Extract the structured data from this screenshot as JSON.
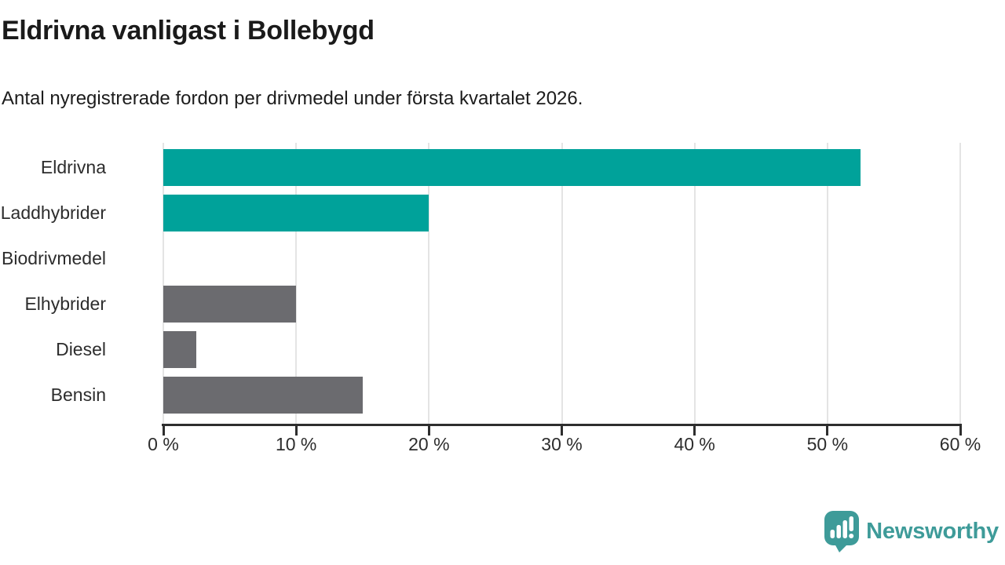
{
  "header": {
    "title": "Eldrivna vanligast i Bollebygd",
    "subtitle": "Antal nyregistrerade fordon per drivmedel under första kvartalet 2026."
  },
  "chart_data": {
    "type": "bar",
    "orientation": "horizontal",
    "title": "Eldrivna vanligast i Bollebygd",
    "subtitle": "Antal nyregistrerade fordon per drivmedel under första kvartalet 2026.",
    "categories": [
      "Eldrivna",
      "Laddhybrider",
      "Biodrivmedel",
      "Elhybrider",
      "Diesel",
      "Bensin"
    ],
    "values": [
      52.5,
      20,
      0,
      10,
      2.5,
      15
    ],
    "unit": "%",
    "bar_colors": [
      "#00a29a",
      "#00a29a",
      "#6b6b6f",
      "#6b6b6f",
      "#6b6b6f",
      "#6b6b6f"
    ],
    "xlim": [
      0,
      60
    ],
    "x_ticks": [
      0,
      10,
      20,
      30,
      40,
      50,
      60
    ],
    "x_tick_labels": [
      "0 %",
      "10 %",
      "20 %",
      "30 %",
      "40 %",
      "50 %",
      "60 %"
    ],
    "grid": true,
    "legend": "none",
    "xlabel": "",
    "ylabel": ""
  },
  "colors": {
    "accent_teal": "#00a29a",
    "neutral_gray": "#6b6b6f",
    "logo_teal": "#3e9b99",
    "gridline": "#e4e4e4",
    "axis": "#2e2e2e"
  },
  "footer": {
    "logo_text": "Newsworthy"
  }
}
